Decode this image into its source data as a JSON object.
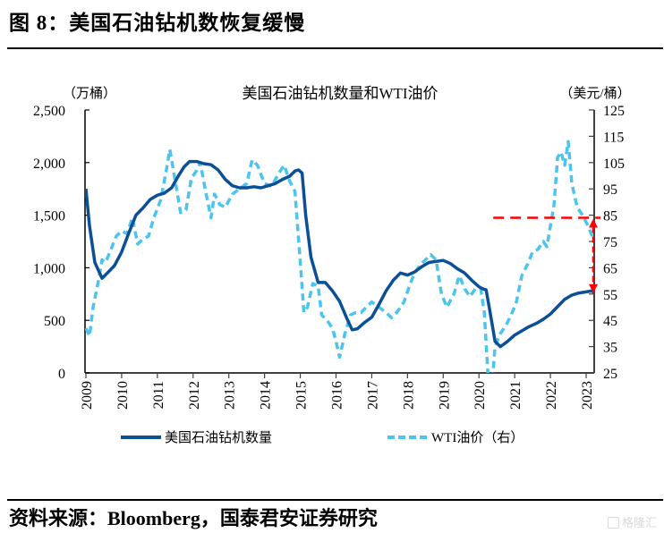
{
  "figure": {
    "title": "图 8：美国石油钻机数恢复缓慢",
    "source": "资料来源：Bloomberg，国泰君安证券研究",
    "watermark": "格隆汇"
  },
  "colors": {
    "rig_count": "#0B4F96",
    "wti": "#4DC3F0",
    "annotation": "#FF0000",
    "axis": "#000000"
  },
  "chart_data": {
    "type": "line",
    "title": "美国石油钻机数量和WTI油价",
    "left_axis": {
      "unit_label": "（万桶）",
      "ylim": [
        0,
        2500
      ],
      "ticks": [
        "2,500",
        "2,000",
        "1,500",
        "1,000",
        "500",
        "0"
      ],
      "tick_values": [
        2500,
        2000,
        1500,
        1000,
        500,
        0
      ]
    },
    "right_axis": {
      "unit_label": "（美元/桶）",
      "ylim": [
        25,
        125
      ],
      "ticks": [
        "125",
        "115",
        "105",
        "95",
        "85",
        "75",
        "65",
        "55",
        "45",
        "35",
        "25"
      ],
      "tick_values": [
        125,
        115,
        105,
        95,
        85,
        75,
        65,
        55,
        45,
        35,
        25
      ]
    },
    "xlim": [
      2009.0,
      2023.4
    ],
    "x_ticks": [
      "2009",
      "2010",
      "2011",
      "2012",
      "2013",
      "2014",
      "2015",
      "2016",
      "2017",
      "2018",
      "2019",
      "2020",
      "2021",
      "2022",
      "2023"
    ],
    "x_tick_values": [
      2009,
      2010,
      2011,
      2012,
      2013,
      2014,
      2015,
      2016,
      2017,
      2018,
      2019,
      2020,
      2021,
      2022,
      2023
    ],
    "legend": {
      "position": "bottom",
      "entries": [
        "美国石油钻机数量",
        "WTI油价（右）"
      ]
    },
    "series": [
      {
        "name": "美国石油钻机数量",
        "axis": "left",
        "style": "solid",
        "x": [
          2009.0,
          2009.1,
          2009.25,
          2009.45,
          2009.6,
          2009.8,
          2010.0,
          2010.2,
          2010.4,
          2010.6,
          2010.8,
          2011.0,
          2011.2,
          2011.4,
          2011.6,
          2011.75,
          2011.9,
          2012.1,
          2012.3,
          2012.5,
          2012.7,
          2012.9,
          2013.1,
          2013.3,
          2013.5,
          2013.7,
          2013.9,
          2014.1,
          2014.3,
          2014.5,
          2014.7,
          2014.85,
          2014.95,
          2015.05,
          2015.15,
          2015.3,
          2015.5,
          2015.7,
          2015.9,
          2016.1,
          2016.3,
          2016.45,
          2016.6,
          2016.8,
          2017.0,
          2017.2,
          2017.4,
          2017.6,
          2017.8,
          2018.0,
          2018.2,
          2018.4,
          2018.6,
          2018.8,
          2019.0,
          2019.2,
          2019.4,
          2019.6,
          2019.8,
          2020.0,
          2020.1,
          2020.2,
          2020.3,
          2020.45,
          2020.6,
          2020.8,
          2021.0,
          2021.2,
          2021.4,
          2021.6,
          2021.8,
          2022.0,
          2022.2,
          2022.4,
          2022.6,
          2022.8,
          2023.0,
          2023.15,
          2023.3
        ],
        "values": [
          1750,
          1400,
          1050,
          900,
          950,
          1020,
          1150,
          1330,
          1500,
          1570,
          1650,
          1690,
          1710,
          1760,
          1880,
          1960,
          2010,
          2010,
          1990,
          1980,
          1930,
          1840,
          1780,
          1760,
          1760,
          1770,
          1760,
          1780,
          1800,
          1840,
          1870,
          1920,
          1930,
          1900,
          1500,
          1100,
          860,
          860,
          780,
          680,
          520,
          410,
          420,
          480,
          530,
          650,
          780,
          880,
          950,
          930,
          960,
          1010,
          1050,
          1060,
          1070,
          1040,
          990,
          950,
          880,
          820,
          800,
          790,
          600,
          300,
          250,
          300,
          360,
          400,
          440,
          470,
          510,
          560,
          630,
          700,
          740,
          760,
          770,
          780,
          750
        ]
      },
      {
        "name": "WTI油价（右）",
        "axis": "right",
        "style": "dashed",
        "x": [
          2009.0,
          2009.1,
          2009.2,
          2009.35,
          2009.45,
          2009.55,
          2009.7,
          2009.85,
          2010.0,
          2010.15,
          2010.3,
          2010.45,
          2010.6,
          2010.75,
          2010.9,
          2011.1,
          2011.25,
          2011.35,
          2011.5,
          2011.65,
          2011.8,
          2011.95,
          2012.1,
          2012.2,
          2012.35,
          2012.5,
          2012.6,
          2012.75,
          2012.9,
          2013.1,
          2013.3,
          2013.5,
          2013.65,
          2013.8,
          2014.0,
          2014.2,
          2014.4,
          2014.55,
          2014.7,
          2014.85,
          2015.0,
          2015.1,
          2015.2,
          2015.35,
          2015.5,
          2015.6,
          2015.75,
          2015.9,
          2016.0,
          2016.1,
          2016.25,
          2016.4,
          2016.55,
          2016.7,
          2016.85,
          2017.0,
          2017.2,
          2017.4,
          2017.55,
          2017.7,
          2017.9,
          2018.05,
          2018.2,
          2018.35,
          2018.5,
          2018.65,
          2018.8,
          2018.95,
          2019.1,
          2019.3,
          2019.45,
          2019.6,
          2019.75,
          2019.9,
          2020.05,
          2020.15,
          2020.25,
          2020.35,
          2020.45,
          2020.6,
          2020.75,
          2020.9,
          2021.05,
          2021.2,
          2021.35,
          2021.5,
          2021.65,
          2021.8,
          2021.9,
          2022.0,
          2022.1,
          2022.2,
          2022.3,
          2022.4,
          2022.5,
          2022.6,
          2022.75,
          2022.9,
          2023.05,
          2023.2,
          2023.3
        ],
        "values": [
          42,
          39,
          50,
          60,
          68,
          67,
          72,
          77,
          79,
          78,
          84,
          74,
          76,
          77,
          84,
          91,
          102,
          110,
          98,
          86,
          87,
          99,
          102,
          105,
          94,
          84,
          93,
          89,
          88,
          93,
          95,
          97,
          106,
          104,
          97,
          96,
          101,
          104,
          98,
          94,
          67,
          48,
          50,
          59,
          58,
          47,
          45,
          42,
          37,
          31,
          40,
          47,
          48,
          48,
          50,
          52,
          50,
          48,
          46,
          48,
          52,
          58,
          63,
          66,
          68,
          70,
          68,
          55,
          50,
          55,
          62,
          57,
          54,
          57,
          57,
          48,
          25,
          18,
          35,
          40,
          43,
          47,
          52,
          62,
          66,
          71,
          72,
          75,
          73,
          81,
          89,
          107,
          109,
          104,
          113,
          97,
          88,
          85,
          81,
          76,
          74
        ]
      }
    ],
    "annotations": [
      {
        "type": "horizontal-dashed-line",
        "axis": "right",
        "value": 84,
        "x_start": 2020.4,
        "x_end": 2023.3
      },
      {
        "type": "double-arrow",
        "axis": "right",
        "from": 84,
        "to": 55,
        "x": 2023.2
      }
    ]
  }
}
